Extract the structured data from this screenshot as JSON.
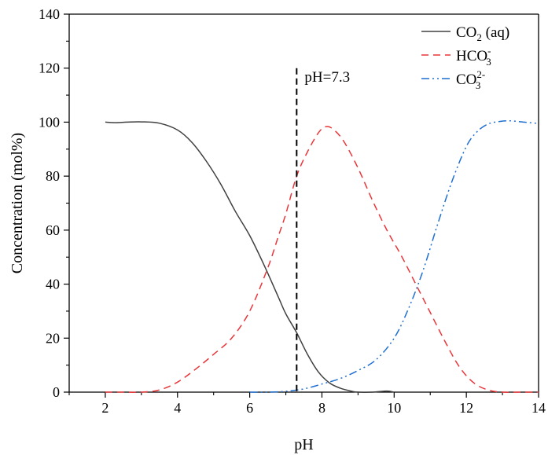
{
  "chart_data": {
    "type": "line",
    "xlabel": "pH",
    "ylabel": "Concentration (mol%)",
    "xlim": [
      1,
      14
    ],
    "ylim": [
      0,
      140
    ],
    "xticks": [
      2,
      4,
      6,
      8,
      10,
      12,
      14
    ],
    "xtick_labels": [
      "2",
      "4",
      "6",
      "8",
      "10",
      "12",
      "14"
    ],
    "yticks": [
      0,
      20,
      40,
      60,
      80,
      100,
      120,
      140
    ],
    "ytick_labels": [
      "0",
      "20",
      "40",
      "60",
      "80",
      "100",
      "120",
      "140"
    ],
    "grid": false,
    "legend_position": "top-right",
    "series": [
      {
        "name": "CO2 (aq)",
        "legend": {
          "main": "CO",
          "sub": "2",
          "sup": "",
          "tail": " (aq)"
        },
        "color": "#404040",
        "dash": "solid",
        "x": [
          2.0,
          2.3,
          2.6,
          3.0,
          3.5,
          4.0,
          4.4,
          4.8,
          5.2,
          5.6,
          6.0,
          6.4,
          6.8,
          7.0,
          7.3,
          7.6,
          7.9,
          8.2,
          8.5,
          8.8,
          9.0,
          9.4,
          9.8,
          10.0
        ],
        "y": [
          100.0,
          99.8,
          100.0,
          100.1,
          99.6,
          97.1,
          92.5,
          85.5,
          77.0,
          67.0,
          58.0,
          47.0,
          35.0,
          29.0,
          22.0,
          14.0,
          7.5,
          3.5,
          1.5,
          0.4,
          0.0,
          0.0,
          0.4,
          0.0
        ]
      },
      {
        "name": "HCO3-",
        "legend": {
          "main": "HCO",
          "sub": "3",
          "sup": "-",
          "tail": ""
        },
        "color": "#e8363a",
        "dash": "dashed",
        "x": [
          2.0,
          2.5,
          3.0,
          3.5,
          4.0,
          4.5,
          5.0,
          5.5,
          6.0,
          6.5,
          6.8,
          7.0,
          7.3,
          7.6,
          7.9,
          8.1,
          8.3,
          8.6,
          9.0,
          9.4,
          9.8,
          10.2,
          10.6,
          11.0,
          11.4,
          11.8,
          12.2,
          12.6,
          13.0,
          13.5,
          14.0
        ],
        "y": [
          0.0,
          0.0,
          0.0,
          0.8,
          3.7,
          8.5,
          14.0,
          20.0,
          30.0,
          46.0,
          58.0,
          66.0,
          80.0,
          89.0,
          96.0,
          98.3,
          97.5,
          93.0,
          83.0,
          71.0,
          60.0,
          50.5,
          40.0,
          29.5,
          19.0,
          9.5,
          3.5,
          0.8,
          0.0,
          0.0,
          0.0
        ]
      },
      {
        "name": "CO3 2-",
        "legend": {
          "main": "CO",
          "sub": "3",
          "sup": "2-",
          "tail": ""
        },
        "color": "#1f6fd1",
        "dash": "dashdotdot",
        "x": [
          6.0,
          6.5,
          7.0,
          7.5,
          8.0,
          8.5,
          9.0,
          9.5,
          10.0,
          10.4,
          10.8,
          11.2,
          11.6,
          12.0,
          12.3,
          12.6,
          12.9,
          13.2,
          13.6,
          14.0
        ],
        "y": [
          0.0,
          0.0,
          0.3,
          1.2,
          3.0,
          5.0,
          8.0,
          12.0,
          20.0,
          31.0,
          45.0,
          62.0,
          78.0,
          91.0,
          96.5,
          99.3,
          100.2,
          100.5,
          100.0,
          99.5
        ]
      }
    ],
    "annotations": [
      {
        "type": "vline",
        "x": 7.3,
        "y_top": 120,
        "style": "dashed",
        "color": "#000000"
      },
      {
        "type": "text",
        "text": "pH=7.3",
        "x": 7.52,
        "y": 115
      }
    ]
  }
}
